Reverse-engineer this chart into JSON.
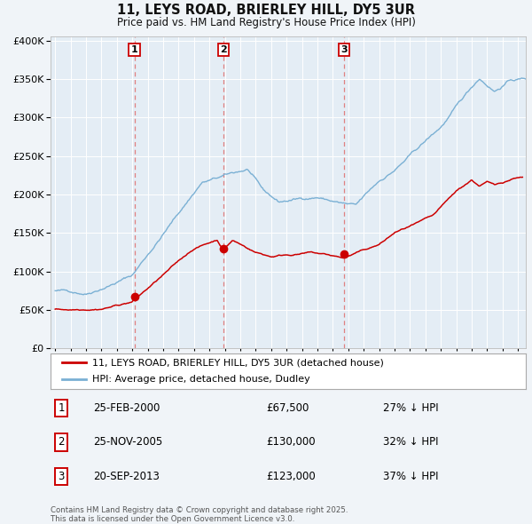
{
  "title": "11, LEYS ROAD, BRIERLEY HILL, DY5 3UR",
  "subtitle": "Price paid vs. HM Land Registry's House Price Index (HPI)",
  "legend_property": "11, LEYS ROAD, BRIERLEY HILL, DY5 3UR (detached house)",
  "legend_hpi": "HPI: Average price, detached house, Dudley",
  "footer": "Contains HM Land Registry data © Crown copyright and database right 2025.\nThis data is licensed under the Open Government Licence v3.0.",
  "transactions": [
    {
      "num": 1,
      "date": "25-FEB-2000",
      "year": 2000.14,
      "price": 67500,
      "pct": "27% ↓ HPI"
    },
    {
      "num": 2,
      "date": "25-NOV-2005",
      "year": 2005.9,
      "price": 130000,
      "pct": "32% ↓ HPI"
    },
    {
      "num": 3,
      "date": "20-SEP-2013",
      "year": 2013.72,
      "price": 123000,
      "pct": "37% ↓ HPI"
    }
  ],
  "property_color": "#cc0000",
  "hpi_color": "#7ab0d4",
  "vline_color": "#e08080",
  "background_color": "#f0f4f8",
  "plot_bg": "#e4edf5",
  "ylim": [
    0,
    400000
  ],
  "xlim_start": 1994.7,
  "xlim_end": 2025.5
}
